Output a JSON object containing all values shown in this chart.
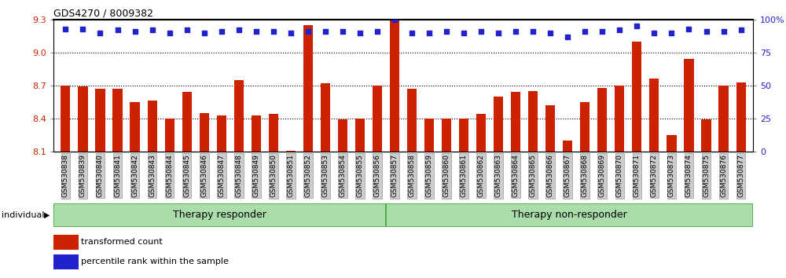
{
  "title": "GDS4270 / 8009382",
  "categories": [
    "GSM530838",
    "GSM530839",
    "GSM530840",
    "GSM530841",
    "GSM530842",
    "GSM530843",
    "GSM530844",
    "GSM530845",
    "GSM530846",
    "GSM530847",
    "GSM530848",
    "GSM530849",
    "GSM530850",
    "GSM530851",
    "GSM530852",
    "GSM530853",
    "GSM530854",
    "GSM530855",
    "GSM530856",
    "GSM530857",
    "GSM530858",
    "GSM530859",
    "GSM530860",
    "GSM530861",
    "GSM530862",
    "GSM530863",
    "GSM530864",
    "GSM530865",
    "GSM530866",
    "GSM530867",
    "GSM530868",
    "GSM530869",
    "GSM530870",
    "GSM530871",
    "GSM530872",
    "GSM530873",
    "GSM530874",
    "GSM530875",
    "GSM530876",
    "GSM530877"
  ],
  "bar_values": [
    8.7,
    8.69,
    8.67,
    8.67,
    8.55,
    8.56,
    8.4,
    8.64,
    8.45,
    8.43,
    8.75,
    8.43,
    8.44,
    8.11,
    9.25,
    8.72,
    8.39,
    8.4,
    8.7,
    9.3,
    8.67,
    8.4,
    8.4,
    8.4,
    8.44,
    8.6,
    8.64,
    8.65,
    8.52,
    8.2,
    8.55,
    8.68,
    8.7,
    9.1,
    8.76,
    8.25,
    8.94,
    8.39,
    8.7,
    8.73
  ],
  "dot_values": [
    93,
    93,
    90,
    92,
    91,
    92,
    90,
    92,
    90,
    91,
    92,
    91,
    91,
    90,
    91,
    91,
    91,
    90,
    91,
    100,
    90,
    90,
    91,
    90,
    91,
    90,
    91,
    91,
    90,
    87,
    91,
    91,
    92,
    95,
    90,
    90,
    93,
    91,
    91,
    92
  ],
  "groups": [
    {
      "label": "Therapy responder",
      "start": 0,
      "end": 19
    },
    {
      "label": "Therapy non-responder",
      "start": 19,
      "end": 40
    }
  ],
  "ylim_left": [
    8.1,
    9.3
  ],
  "ylim_right": [
    0,
    100
  ],
  "yticks_left": [
    8.1,
    8.4,
    8.7,
    9.0,
    9.3
  ],
  "yticks_right": [
    0,
    25,
    50,
    75,
    100
  ],
  "bar_color": "#cc2200",
  "dot_color": "#2222cc",
  "group_fill_color": "#aaddaa",
  "group_border_color": "#44aa44",
  "tick_label_color_left": "#cc2200",
  "tick_label_color_right": "#2222cc",
  "legend_items": [
    {
      "label": "transformed count",
      "color": "#cc2200"
    },
    {
      "label": "percentile rank within the sample",
      "color": "#2222cc"
    }
  ],
  "individual_label": "individual",
  "responder_count": 19,
  "total_count": 40
}
